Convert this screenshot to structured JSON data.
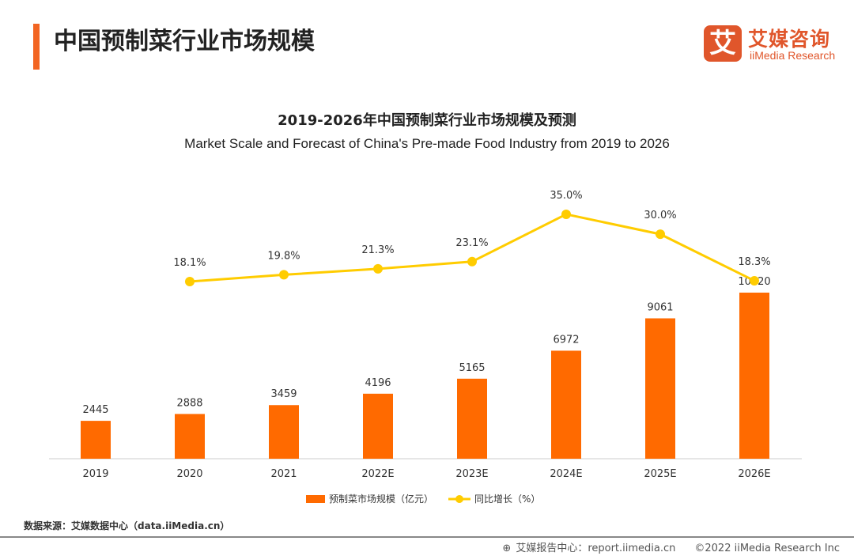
{
  "header": {
    "title": "中国预制菜行业市场规模",
    "logo_mark": "艾",
    "logo_cn": "艾媒咨询",
    "logo_en": "iiMedia Research"
  },
  "chart_data": {
    "type": "bar+line",
    "title": "2019-2026年中国预制菜行业市场规模及预测",
    "subtitle": "Market Scale and Forecast of China's Pre-made Food Industry from 2019 to 2026",
    "categories": [
      "2019",
      "2020",
      "2021",
      "2022E",
      "2023E",
      "2024E",
      "2025E",
      "2026E"
    ],
    "series": [
      {
        "name": "预制菜市场规模（亿元）",
        "type": "bar",
        "color": "#ff6a00",
        "values": [
          2445,
          2888,
          3459,
          4196,
          5165,
          6972,
          9061,
          10720
        ],
        "labels": [
          "2445",
          "2888",
          "3459",
          "4196",
          "5165",
          "6972",
          "9061",
          "10720"
        ]
      },
      {
        "name": "同比增长（%）",
        "type": "line",
        "color": "#ffcc00",
        "values": [
          null,
          18.1,
          19.8,
          21.3,
          23.1,
          35.0,
          30.0,
          18.3
        ],
        "labels": [
          "",
          "18.1%",
          "19.8%",
          "21.3%",
          "23.1%",
          "35.0%",
          "30.0%",
          "18.3%"
        ]
      }
    ],
    "legend": "bottom",
    "grid": false
  },
  "source": "数据来源：艾媒数据中心（data.iiMedia.cn）",
  "footer": {
    "icon": "globe-cursor-icon",
    "center": "艾媒报告中心：report.iimedia.cn",
    "copyright": "©2022  iiMedia Research  Inc"
  }
}
